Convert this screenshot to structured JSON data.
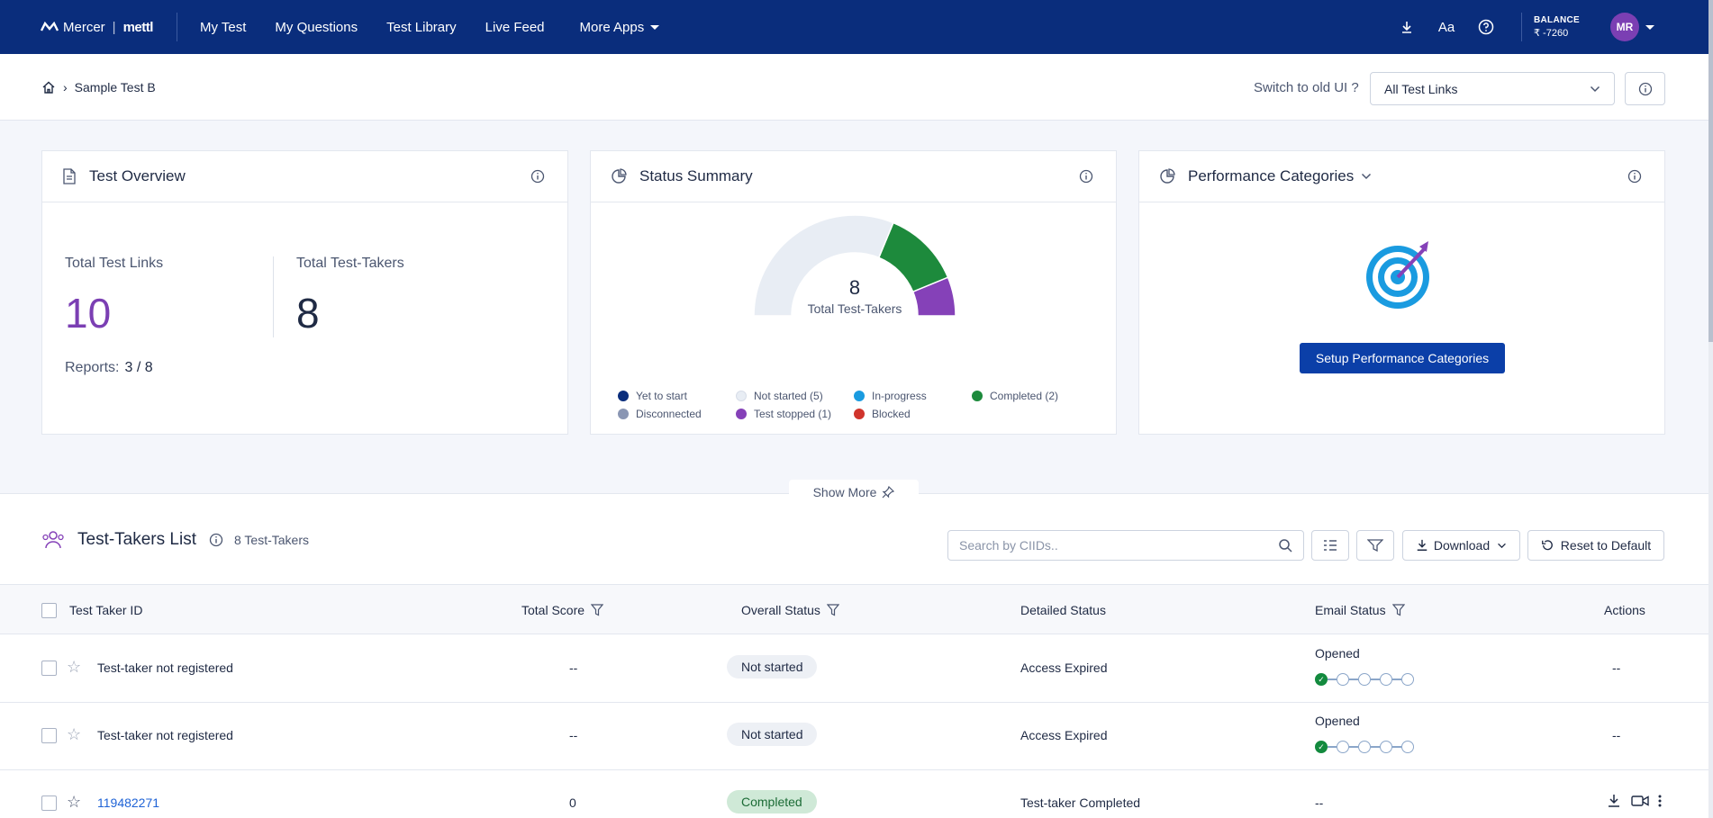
{
  "nav": {
    "brand_left": "Mercer",
    "brand_right": "mettl",
    "items": [
      "My Test",
      "My Questions",
      "Test Library",
      "Live Feed",
      "More Apps"
    ],
    "balance_label": "BALANCE",
    "balance_value": "₹ -7260",
    "avatar_initials": "MR",
    "text_size_label": "Aa"
  },
  "subheader": {
    "breadcrumb": "Sample Test B",
    "switch_label": "Switch to old UI ?",
    "test_links_select": "All Test Links"
  },
  "overview": {
    "title": "Test Overview",
    "total_links_label": "Total Test Links",
    "total_links_value": "10",
    "total_takers_label": "Total Test-Takers",
    "total_takers_value": "8",
    "reports_label": "Reports:",
    "reports_value": "3 / 8"
  },
  "status": {
    "title": "Status Summary",
    "center_value": "8",
    "center_label": "Total Test-Takers",
    "legend": [
      {
        "label": "Yet to start",
        "color": "#0a2d7c"
      },
      {
        "label": "Not started (5)",
        "color": "#e8edf4"
      },
      {
        "label": "In-progress",
        "color": "#1a9be0"
      },
      {
        "label": "Completed (2)",
        "color": "#1d8a3c"
      },
      {
        "label": "Disconnected",
        "color": "#8a96b3"
      },
      {
        "label": "Test stopped (1)",
        "color": "#8541b8"
      },
      {
        "label": "Blocked",
        "color": "#d0342c"
      }
    ],
    "slices": [
      {
        "label": "Not started",
        "value": 5,
        "color": "#e8edf4"
      },
      {
        "label": "Completed",
        "value": 2,
        "color": "#1d8a3c"
      },
      {
        "label": "Test stopped",
        "value": 1,
        "color": "#8541b8"
      }
    ]
  },
  "performance": {
    "title": "Performance Categories",
    "setup_button": "Setup Performance Categories"
  },
  "show_more": "Show More",
  "list": {
    "title": "Test-Takers List",
    "count": "8 Test-Takers",
    "search_placeholder": "Search by CIIDs..",
    "download_label": "Download",
    "reset_label": "Reset to Default",
    "columns": [
      "Test Taker ID",
      "Total Score",
      "Overall Status",
      "Detailed Status",
      "Email Status",
      "Actions"
    ],
    "rows": [
      {
        "id": "Test-taker not registered",
        "score": "--",
        "status": "Not started",
        "detail": "Access Expired",
        "email": "Opened",
        "actions": "--"
      },
      {
        "id": "Test-taker not registered",
        "score": "--",
        "status": "Not started",
        "detail": "Access Expired",
        "email": "Opened",
        "actions": "--"
      },
      {
        "id": "119482271",
        "score": "0",
        "status": "Completed",
        "detail": "Test-taker Completed",
        "email": "--",
        "actions": ""
      }
    ]
  }
}
